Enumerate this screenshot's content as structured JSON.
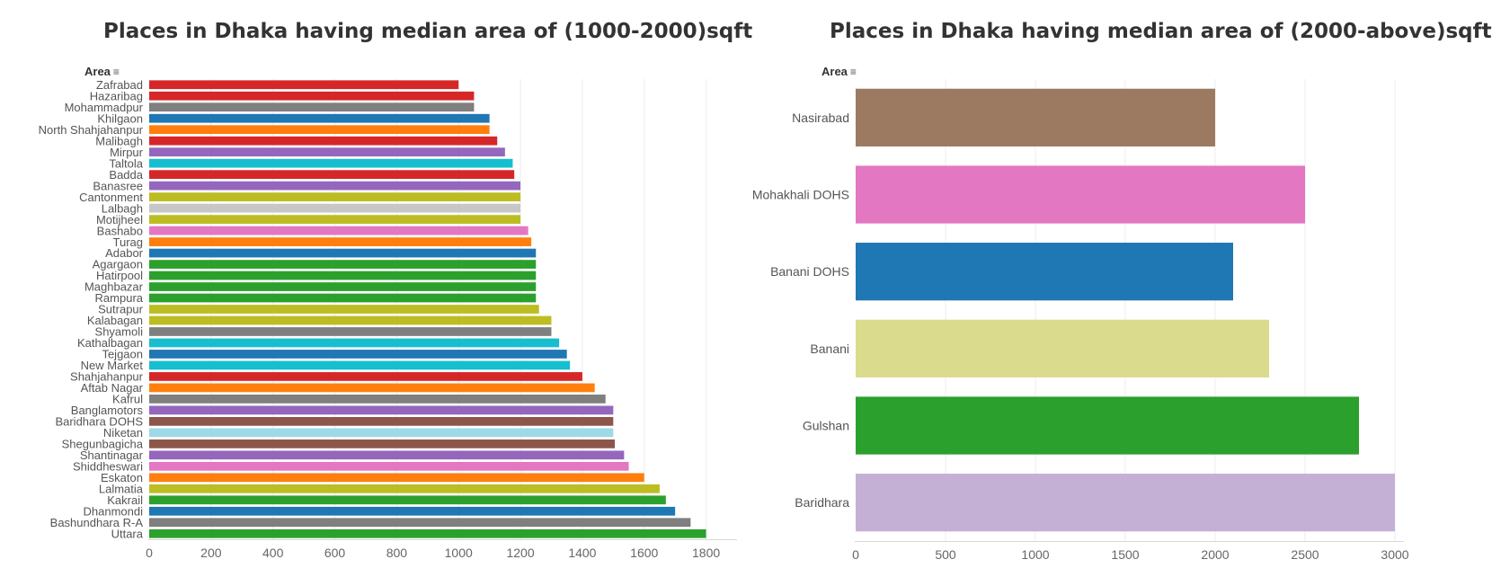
{
  "chart_data": [
    {
      "type": "bar",
      "orientation": "horizontal",
      "title": "Places in Dhaka having median area of (1000-2000)sqft",
      "field_label": "Area",
      "categories": [
        "Zafrabad",
        "Hazaribag",
        "Mohammadpur",
        "Khilgaon",
        "North Shahjahanpur",
        "Malibagh",
        "Mirpur",
        "Taltola",
        "Badda",
        "Banasree",
        "Cantonment",
        "Lalbagh",
        "Motijheel",
        "Bashabo",
        "Turag",
        "Adabor",
        "Agargaon",
        "Hatirpool",
        "Maghbazar",
        "Rampura",
        "Sutrapur",
        "Kalabagan",
        "Shyamoli",
        "Kathalbagan",
        "Tejgaon",
        "New Market",
        "Shahjahanpur",
        "Aftab Nagar",
        "Kafrul",
        "Banglamotors",
        "Baridhara DOHS",
        "Niketan",
        "Shegunbagicha",
        "Shantinagar",
        "Shiddheswari",
        "Eskaton",
        "Lalmatia",
        "Kakrail",
        "Dhanmondi",
        "Bashundhara R-A",
        "Uttara"
      ],
      "values": [
        1000,
        1050,
        1050,
        1100,
        1100,
        1125,
        1150,
        1175,
        1180,
        1200,
        1200,
        1200,
        1200,
        1225,
        1235,
        1250,
        1250,
        1250,
        1250,
        1250,
        1260,
        1300,
        1300,
        1325,
        1350,
        1360,
        1400,
        1440,
        1475,
        1500,
        1500,
        1500,
        1505,
        1535,
        1550,
        1600,
        1650,
        1670,
        1700,
        1750,
        1800
      ],
      "colors": [
        "#d62728",
        "#d62728",
        "#7f7f7f",
        "#1f77b4",
        "#ff7f0e",
        "#d62728",
        "#9467bd",
        "#17becf",
        "#d62728",
        "#9467bd",
        "#bcbd22",
        "#c7c7c7",
        "#bcbd22",
        "#e377c2",
        "#ff7f0e",
        "#1f77b4",
        "#2ca02c",
        "#2ca02c",
        "#2ca02c",
        "#2ca02c",
        "#bcbd22",
        "#bcbd22",
        "#7f7f7f",
        "#17becf",
        "#1f77b4",
        "#17becf",
        "#d62728",
        "#ff7f0e",
        "#7f7f7f",
        "#9467bd",
        "#8c564b",
        "#9edae5",
        "#8c564b",
        "#9467bd",
        "#e377c2",
        "#ff7f0e",
        "#bcbd22",
        "#2ca02c",
        "#1f77b4",
        "#7f7f7f",
        "#2ca02c"
      ],
      "xlim": [
        0,
        1900
      ],
      "x_ticks": [
        0,
        200,
        400,
        600,
        800,
        1000,
        1200,
        1400,
        1600,
        1800
      ],
      "x_tick_labels": [
        "0",
        "200",
        "400",
        "600",
        "800",
        "1000",
        "1200",
        "1400",
        "1600",
        "1800"
      ],
      "grid": true
    },
    {
      "type": "bar",
      "orientation": "horizontal",
      "title": "Places in Dhaka having median area of (2000-above)sqft",
      "field_label": "Area",
      "categories": [
        "Nasirabad",
        "Mohakhali DOHS",
        "Banani DOHS",
        "Banani",
        "Gulshan",
        "Baridhara"
      ],
      "values": [
        2000,
        2500,
        2100,
        2300,
        2800,
        3000
      ],
      "colors": [
        "#9c7a61",
        "#e377c2",
        "#1f77b4",
        "#dbdb8d",
        "#2ca02c",
        "#c5b0d5"
      ],
      "xlim": [
        0,
        3050
      ],
      "x_ticks": [
        0,
        500,
        1000,
        1500,
        2000,
        2500,
        3000
      ],
      "x_tick_labels": [
        "0",
        "500",
        "1000",
        "1500",
        "2000",
        "2500",
        "3000"
      ],
      "grid": true
    }
  ]
}
